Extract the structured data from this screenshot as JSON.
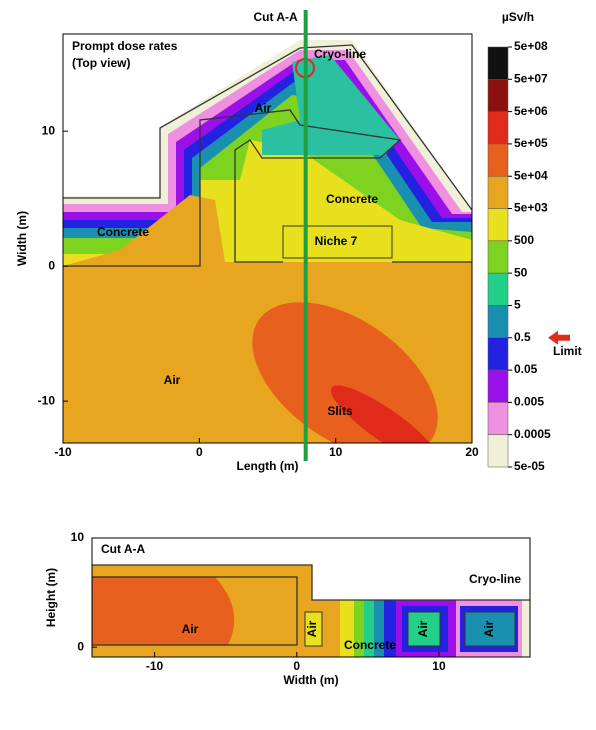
{
  "chart_data": [
    {
      "type": "heatmap",
      "title": "Prompt dose rates",
      "subtitle": "(Top view)",
      "x_label": "Length (m)",
      "y_label": "Width (m)",
      "xlim": [
        -10,
        20
      ],
      "xticks": [
        -10,
        0,
        10,
        20
      ],
      "ylim": [
        -13.1,
        17.2
      ],
      "yticks": [
        -10,
        0,
        10
      ],
      "cut_label": "Cut A-A",
      "cut_x": 7.8,
      "annotations": [
        "Cryo-line",
        "Air",
        "Concrete",
        "Concrete",
        "Niche 7",
        "Air",
        "Slits"
      ],
      "colorbar": {
        "title": "µSv/h",
        "log": true,
        "lim": [
          5e-05,
          500000000
        ],
        "ticks": [
          {
            "value": 500000000,
            "label": "5e+08"
          },
          {
            "value": 50000000,
            "label": "5e+07"
          },
          {
            "value": 5000000,
            "label": "5e+06"
          },
          {
            "value": 500000,
            "label": "5e+05"
          },
          {
            "value": 50000,
            "label": "5e+04"
          },
          {
            "value": 5000,
            "label": "5e+03"
          },
          500,
          50,
          5,
          0.5,
          0.05,
          0.005,
          0.0005,
          {
            "value": 5e-05,
            "label": "5e-05"
          }
        ],
        "colors": [
          "#111111",
          "#8c1010",
          "#e02a1a",
          "#e8601e",
          "#e8a520",
          "#e8e01c",
          "#7ed321",
          "#22d08a",
          "#1a90b0",
          "#2222e0",
          "#9a10e8",
          "#f090e0",
          "#f0f0d8"
        ],
        "limit_label": "Limit",
        "limit_value": 0.5
      }
    },
    {
      "type": "heatmap",
      "title": "Cut A-A",
      "x_label": "Width (m)",
      "y_label": "Height (m)",
      "xlim": [
        -14.4,
        16.4
      ],
      "xticks": [
        -10,
        0,
        10
      ],
      "ylim": [
        -0.9,
        10
      ],
      "yticks": [
        0,
        10
      ],
      "annotations": [
        "Cryo-line",
        "Air",
        "Air",
        "Concrete",
        "Air",
        "Air"
      ]
    }
  ]
}
